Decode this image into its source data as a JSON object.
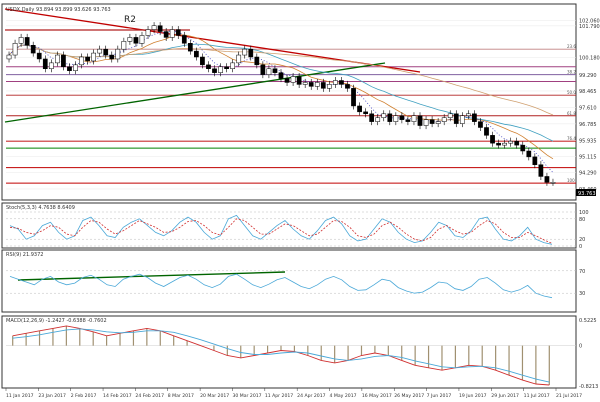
{
  "chart_data": [
    {
      "type": "candlestick",
      "title": "USDX,Daily 93.894 93.899 93.626 93.763",
      "symbol": "USDX",
      "timeframe": "Daily",
      "ohlc_header": "93.894 93.899 93.626 93.763",
      "y_ticks": [
        "102.060",
        "101.790",
        "100.180",
        "99.290",
        "98.465",
        "97.610",
        "96.785",
        "95.935",
        "95.115",
        "94.290",
        "93.460"
      ],
      "ylim": [
        93.0,
        102.6
      ],
      "x_ticks": [
        "11 Jan 2017",
        "23 Jan 2017",
        "2 Feb 2017",
        "14 Feb 2017",
        "24 Feb 2017",
        "8 Mar 2017",
        "20 Mar 2017",
        "30 Mar 2017",
        "11 Apr 2017",
        "24 Apr 2017",
        "4 May 2017",
        "16 May 2017",
        "26 May 2017",
        "7 Jun 2017",
        "19 Jun 2017",
        "29 Jun 2017",
        "11 Jul 2017",
        "21 Jul 2017"
      ],
      "annotations": [
        "R2"
      ],
      "fib_levels": [
        {
          "label": "23.6",
          "value": 100.6
        },
        {
          "label": "38.2",
          "value": 99.3
        },
        {
          "label": "50.0",
          "value": 98.25
        },
        {
          "label": "61.8",
          "value": 97.2
        },
        {
          "label": "76.4",
          "value": 95.9
        },
        {
          "label": "100",
          "value": 93.76
        }
      ],
      "last_price": "93.763",
      "close": [
        100.3,
        100.9,
        101.2,
        100.8,
        100.4,
        100.1,
        99.6,
        99.9,
        100.3,
        99.7,
        99.5,
        99.8,
        100.2,
        100.0,
        100.4,
        100.6,
        100.3,
        100.1,
        100.6,
        101.0,
        101.2,
        100.9,
        101.3,
        101.6,
        101.8,
        101.5,
        101.2,
        101.6,
        101.3,
        100.9,
        100.5,
        100.2,
        99.8,
        99.6,
        99.4,
        99.7,
        99.6,
        99.9,
        100.3,
        100.6,
        100.2,
        99.8,
        99.3,
        99.6,
        99.4,
        99.1,
        98.9,
        99.2,
        98.8,
        98.9,
        98.7,
        98.9,
        98.6,
        98.8,
        99.0,
        98.8,
        98.6,
        97.7,
        97.4,
        97.3,
        96.9,
        97.1,
        97.3,
        96.9,
        97.2,
        97.0,
        96.9,
        97.2,
        96.7,
        97.0,
        96.8,
        96.9,
        97.1,
        97.3,
        96.8,
        97.2,
        97.3,
        96.9,
        96.6,
        96.2,
        95.8,
        95.7,
        95.8,
        95.9,
        95.7,
        95.4,
        95.1,
        94.7,
        94.1,
        93.8,
        93.8
      ]
    },
    {
      "type": "line",
      "title": "Stoch(5,3,3) 4.7638 8.6409",
      "y_ticks": [
        "100",
        "80",
        "20",
        "0"
      ],
      "ylim": [
        0,
        100
      ],
      "series": [
        {
          "name": "%K",
          "values": [
            60,
            50,
            20,
            30,
            60,
            70,
            40,
            20,
            30,
            75,
            85,
            60,
            30,
            25,
            55,
            70,
            80,
            60,
            40,
            30,
            45,
            70,
            85,
            70,
            40,
            20,
            30,
            80,
            90,
            60,
            30,
            20,
            40,
            60,
            75,
            50,
            30,
            20,
            45,
            75,
            85,
            65,
            30,
            15,
            20,
            50,
            80,
            70,
            40,
            20,
            10,
            15,
            40,
            70,
            60,
            30,
            25,
            45,
            80,
            85,
            50,
            20,
            15,
            30,
            55,
            20,
            10,
            5
          ]
        },
        {
          "name": "%D",
          "values": [
            55,
            52,
            40,
            35,
            45,
            60,
            55,
            35,
            30,
            55,
            75,
            70,
            50,
            35,
            45,
            60,
            75,
            65,
            55,
            40,
            42,
            55,
            72,
            75,
            60,
            40,
            32,
            55,
            80,
            75,
            55,
            35,
            35,
            50,
            65,
            60,
            45,
            30,
            35,
            55,
            75,
            72,
            55,
            30,
            25,
            35,
            60,
            70,
            55,
            35,
            20,
            15,
            25,
            50,
            60,
            45,
            35,
            40,
            60,
            75,
            65,
            40,
            25,
            25,
            40,
            30,
            18,
            8
          ]
        }
      ]
    },
    {
      "type": "line",
      "title": "RSI(9) 21.9372",
      "y_ticks": [
        "70",
        "30"
      ],
      "ylim": [
        0,
        100
      ],
      "series": [
        {
          "name": "RSI",
          "values": [
            60,
            55,
            50,
            45,
            55,
            60,
            50,
            45,
            48,
            58,
            62,
            55,
            45,
            42,
            55,
            60,
            64,
            58,
            48,
            42,
            50,
            58,
            62,
            55,
            45,
            40,
            46,
            60,
            64,
            55,
            45,
            40,
            46,
            54,
            58,
            50,
            42,
            38,
            45,
            55,
            60,
            54,
            42,
            35,
            36,
            45,
            55,
            52,
            40,
            34,
            30,
            32,
            40,
            50,
            48,
            38,
            35,
            42,
            55,
            58,
            48,
            36,
            32,
            36,
            44,
            30,
            25,
            22
          ]
        }
      ]
    },
    {
      "type": "bar",
      "title": "MACD(12,26,9) -1.2427 -0.6388 -0.7602",
      "y_ticks": [
        "0.5225",
        "0",
        "-0.8213"
      ],
      "ylim": [
        -0.82,
        0.52
      ],
      "series": [
        {
          "name": "MACD",
          "values": [
            0.2,
            0.25,
            0.3,
            0.35,
            0.4,
            0.35,
            0.28,
            0.2,
            0.25,
            0.3,
            0.35,
            0.3,
            0.2,
            0.1,
            0.0,
            -0.1,
            -0.2,
            -0.25,
            -0.2,
            -0.15,
            -0.1,
            -0.12,
            -0.2,
            -0.3,
            -0.35,
            -0.3,
            -0.2,
            -0.15,
            -0.2,
            -0.3,
            -0.4,
            -0.45,
            -0.5,
            -0.45,
            -0.4,
            -0.42,
            -0.5,
            -0.6,
            -0.7,
            -0.78,
            -0.8
          ]
        },
        {
          "name": "Signal",
          "values": [
            0.15,
            0.18,
            0.22,
            0.27,
            0.32,
            0.34,
            0.32,
            0.28,
            0.26,
            0.27,
            0.3,
            0.3,
            0.27,
            0.2,
            0.12,
            0.03,
            -0.06,
            -0.14,
            -0.18,
            -0.18,
            -0.15,
            -0.13,
            -0.15,
            -0.21,
            -0.27,
            -0.3,
            -0.27,
            -0.22,
            -0.2,
            -0.24,
            -0.31,
            -0.37,
            -0.43,
            -0.45,
            -0.43,
            -0.42,
            -0.45,
            -0.52,
            -0.6,
            -0.68,
            -0.74
          ]
        }
      ]
    }
  ]
}
